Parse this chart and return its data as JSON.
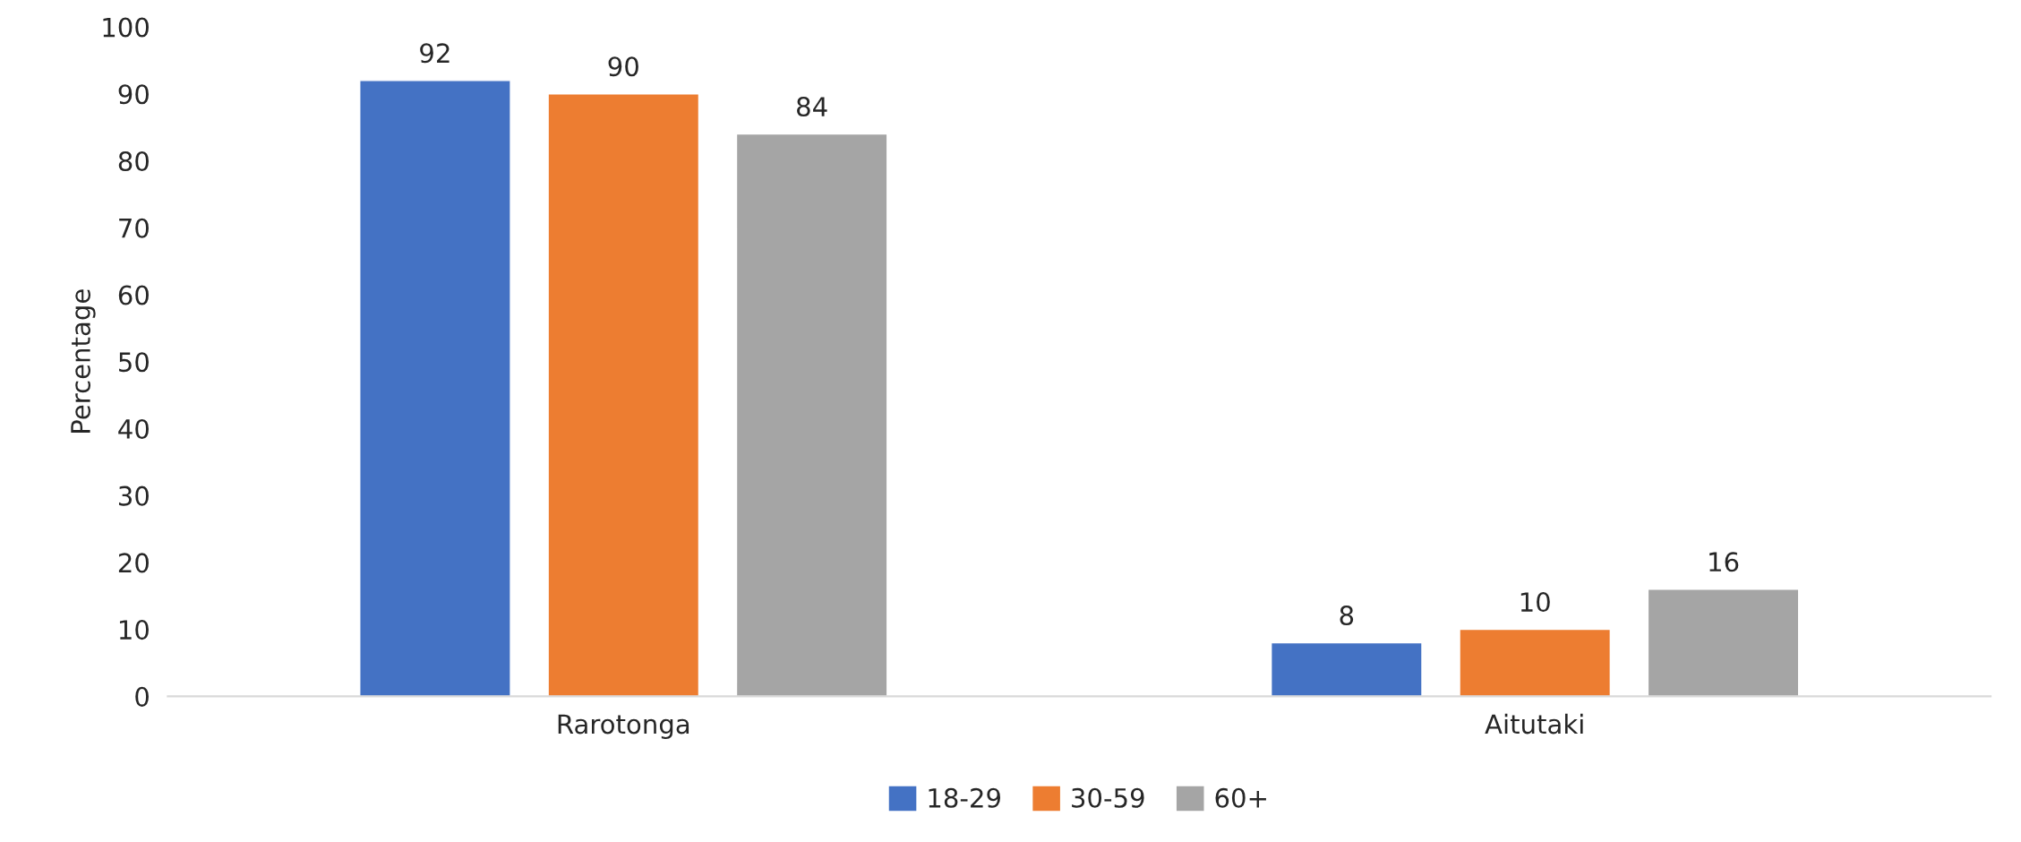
{
  "chart_data": {
    "type": "bar",
    "ylabel": "Percentage",
    "categories": [
      "Rarotonga",
      "Aitutaki"
    ],
    "series": [
      {
        "name": "18-29",
        "color": "#4472c4",
        "values": [
          92,
          8
        ]
      },
      {
        "name": "30-59",
        "color": "#ed7d31",
        "values": [
          90,
          10
        ]
      },
      {
        "name": "60+",
        "color": "#a5a5a5",
        "values": [
          84,
          16
        ]
      }
    ],
    "ylim": [
      0,
      100
    ],
    "yticks": [
      0,
      10,
      20,
      30,
      40,
      50,
      60,
      70,
      80,
      90,
      100
    ],
    "data_labels": true,
    "grid": false,
    "legend": "bottom"
  }
}
